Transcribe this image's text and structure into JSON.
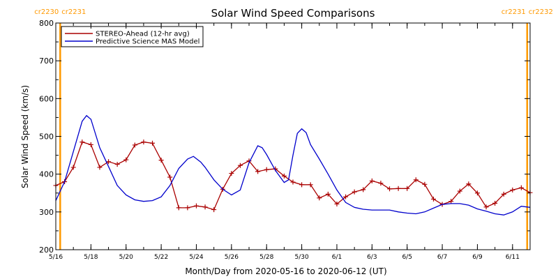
{
  "chart_data": {
    "type": "line",
    "title": "Solar Wind Speed Comparisons",
    "xlabel": "Month/Day from 2020-05-16 to 2020-06-12 (UT)",
    "ylabel": "Solar Wind Speed (km/s)",
    "x_range": [
      "2020-05-16",
      "2020-06-12"
    ],
    "ylim": [
      200,
      800
    ],
    "y_ticks": [
      200,
      300,
      400,
      500,
      600,
      700,
      800
    ],
    "x_ticks": [
      {
        "date": "2020-05-16",
        "label": "5/16"
      },
      {
        "date": "2020-05-18",
        "label": "5/18"
      },
      {
        "date": "2020-05-20",
        "label": "5/20"
      },
      {
        "date": "2020-05-22",
        "label": "5/22"
      },
      {
        "date": "2020-05-24",
        "label": "5/24"
      },
      {
        "date": "2020-05-26",
        "label": "5/26"
      },
      {
        "date": "2020-05-28",
        "label": "5/28"
      },
      {
        "date": "2020-05-30",
        "label": "5/30"
      },
      {
        "date": "2020-06-01",
        "label": "6/1"
      },
      {
        "date": "2020-06-03",
        "label": "6/3"
      },
      {
        "date": "2020-06-05",
        "label": "6/5"
      },
      {
        "date": "2020-06-07",
        "label": "6/7"
      },
      {
        "date": "2020-06-09",
        "label": "6/9"
      },
      {
        "date": "2020-06-11",
        "label": "6/11"
      }
    ],
    "carrington_markers": [
      {
        "date": "2020-05-16 06:00",
        "label_left": "cr2230",
        "label_right": "cr2231"
      },
      {
        "date": "2020-06-11 20:00",
        "label_left": "cr2231",
        "label_right": "cr2232"
      }
    ],
    "legend_position": "top-left",
    "grid": false,
    "series": [
      {
        "name": "STEREO-Ahead (12-hr avg)",
        "color": "#aa0000",
        "marker": "plus",
        "x": [
          "2020-05-16 00:00",
          "2020-05-16 12:00",
          "2020-05-17 00:00",
          "2020-05-17 12:00",
          "2020-05-18 00:00",
          "2020-05-18 12:00",
          "2020-05-19 00:00",
          "2020-05-19 12:00",
          "2020-05-20 00:00",
          "2020-05-20 12:00",
          "2020-05-21 00:00",
          "2020-05-21 12:00",
          "2020-05-22 00:00",
          "2020-05-22 12:00",
          "2020-05-23 00:00",
          "2020-05-23 12:00",
          "2020-05-24 00:00",
          "2020-05-24 12:00",
          "2020-05-25 00:00",
          "2020-05-25 12:00",
          "2020-05-26 00:00",
          "2020-05-26 12:00",
          "2020-05-27 00:00",
          "2020-05-27 12:00",
          "2020-05-28 00:00",
          "2020-05-28 12:00",
          "2020-05-29 00:00",
          "2020-05-29 12:00",
          "2020-05-30 00:00",
          "2020-05-30 12:00",
          "2020-05-31 00:00",
          "2020-05-31 12:00",
          "2020-06-01 00:00",
          "2020-06-01 12:00",
          "2020-06-02 00:00",
          "2020-06-02 12:00",
          "2020-06-03 00:00",
          "2020-06-03 12:00",
          "2020-06-04 00:00",
          "2020-06-04 12:00",
          "2020-06-05 00:00",
          "2020-06-05 12:00",
          "2020-06-06 00:00",
          "2020-06-06 12:00",
          "2020-06-07 00:00",
          "2020-06-07 12:00",
          "2020-06-08 00:00",
          "2020-06-08 12:00",
          "2020-06-09 00:00",
          "2020-06-09 12:00",
          "2020-06-10 00:00",
          "2020-06-10 12:00",
          "2020-06-11 00:00",
          "2020-06-11 12:00",
          "2020-06-12 00:00"
        ],
        "values": [
          370,
          380,
          418,
          485,
          478,
          418,
          433,
          426,
          438,
          477,
          485,
          482,
          437,
          392,
          311,
          311,
          316,
          313,
          306,
          360,
          402,
          423,
          435,
          407,
          412,
          414,
          395,
          379,
          372,
          372,
          337,
          347,
          321,
          340,
          353,
          359,
          382,
          376,
          361,
          362,
          362,
          385,
          373,
          334,
          320,
          328,
          355,
          374,
          350,
          313,
          323,
          347,
          358,
          364,
          351
        ]
      },
      {
        "name": "Predictive Science MAS Model",
        "color": "#0000cc",
        "marker": "none",
        "x": [
          "2020-05-16 00:00",
          "2020-05-16 12:00",
          "2020-05-17 00:00",
          "2020-05-17 12:00",
          "2020-05-17 18:00",
          "2020-05-18 00:00",
          "2020-05-18 12:00",
          "2020-05-19 00:00",
          "2020-05-19 12:00",
          "2020-05-20 00:00",
          "2020-05-20 12:00",
          "2020-05-21 00:00",
          "2020-05-21 12:00",
          "2020-05-22 00:00",
          "2020-05-22 12:00",
          "2020-05-23 00:00",
          "2020-05-23 12:00",
          "2020-05-23 20:00",
          "2020-05-24 06:00",
          "2020-05-24 12:00",
          "2020-05-25 00:00",
          "2020-05-25 12:00",
          "2020-05-26 00:00",
          "2020-05-26 12:00",
          "2020-05-27 00:00",
          "2020-05-27 12:00",
          "2020-05-27 18:00",
          "2020-05-28 00:00",
          "2020-05-28 12:00",
          "2020-05-29 00:00",
          "2020-05-29 06:00",
          "2020-05-29 12:00",
          "2020-05-29 18:00",
          "2020-05-30 00:00",
          "2020-05-30 06:00",
          "2020-05-30 12:00",
          "2020-05-31 00:00",
          "2020-05-31 12:00",
          "2020-06-01 00:00",
          "2020-06-01 12:00",
          "2020-06-02 00:00",
          "2020-06-02 12:00",
          "2020-06-03 00:00",
          "2020-06-03 12:00",
          "2020-06-04 00:00",
          "2020-06-04 12:00",
          "2020-06-05 00:00",
          "2020-06-05 12:00",
          "2020-06-06 00:00",
          "2020-06-06 12:00",
          "2020-06-07 00:00",
          "2020-06-07 12:00",
          "2020-06-08 00:00",
          "2020-06-08 12:00",
          "2020-06-09 00:00",
          "2020-06-09 12:00",
          "2020-06-10 00:00",
          "2020-06-10 12:00",
          "2020-06-11 00:00",
          "2020-06-11 12:00",
          "2020-06-12 00:00"
        ],
        "values": [
          330,
          380,
          460,
          540,
          555,
          545,
          470,
          420,
          370,
          345,
          332,
          328,
          330,
          340,
          370,
          415,
          440,
          447,
          432,
          418,
          385,
          360,
          345,
          358,
          430,
          475,
          470,
          452,
          410,
          378,
          385,
          450,
          508,
          520,
          510,
          478,
          440,
          400,
          358,
          325,
          312,
          307,
          305,
          305,
          305,
          300,
          297,
          295,
          300,
          310,
          320,
          322,
          322,
          318,
          308,
          302,
          295,
          292,
          300,
          315,
          312
        ]
      }
    ]
  }
}
